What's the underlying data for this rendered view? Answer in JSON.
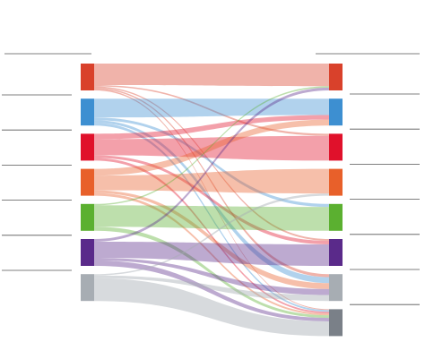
{
  "chart_data": {
    "type": "sankey",
    "left_nodes": [
      {
        "color": "#d9412b"
      },
      {
        "color": "#3d8fd1"
      },
      {
        "color": "#e0112b"
      },
      {
        "color": "#e8602a"
      },
      {
        "color": "#5bb030"
      },
      {
        "color": "#5a2a8a"
      },
      {
        "color": "#a7adb3"
      }
    ],
    "right_nodes": [
      {
        "color": "#d9412b"
      },
      {
        "color": "#3d8fd1"
      },
      {
        "color": "#e0112b"
      },
      {
        "color": "#e8602a"
      },
      {
        "color": "#5bb030"
      },
      {
        "color": "#5a2a8a"
      },
      {
        "color": "#a7adb3"
      },
      {
        "color": "#7a8088"
      }
    ],
    "links": [
      {
        "source": 0,
        "target": 0,
        "value": 80
      },
      {
        "source": 0,
        "target": 2,
        "value": 5
      },
      {
        "source": 0,
        "target": 5,
        "value": 5
      },
      {
        "source": 0,
        "target": 6,
        "value": 5
      },
      {
        "source": 0,
        "target": 7,
        "value": 5
      },
      {
        "source": 1,
        "target": 1,
        "value": 70
      },
      {
        "source": 1,
        "target": 4,
        "value": 10
      },
      {
        "source": 1,
        "target": 6,
        "value": 10
      },
      {
        "source": 1,
        "target": 7,
        "value": 10
      },
      {
        "source": 2,
        "target": 1,
        "value": 20
      },
      {
        "source": 2,
        "target": 2,
        "value": 60
      },
      {
        "source": 2,
        "target": 5,
        "value": 10
      },
      {
        "source": 2,
        "target": 7,
        "value": 10
      },
      {
        "source": 3,
        "target": 1,
        "value": 25
      },
      {
        "source": 3,
        "target": 3,
        "value": 55
      },
      {
        "source": 3,
        "target": 6,
        "value": 10
      },
      {
        "source": 3,
        "target": 7,
        "value": 10
      },
      {
        "source": 4,
        "target": 0,
        "value": 5
      },
      {
        "source": 4,
        "target": 4,
        "value": 80
      },
      {
        "source": 4,
        "target": 7,
        "value": 15
      },
      {
        "source": 5,
        "target": 0,
        "value": 10
      },
      {
        "source": 5,
        "target": 5,
        "value": 60
      },
      {
        "source": 5,
        "target": 6,
        "value": 10
      },
      {
        "source": 5,
        "target": 7,
        "value": 20
      },
      {
        "source": 6,
        "target": 3,
        "value": 5
      },
      {
        "source": 6,
        "target": 6,
        "value": 10
      },
      {
        "source": 6,
        "target": 7,
        "value": 85
      }
    ]
  }
}
